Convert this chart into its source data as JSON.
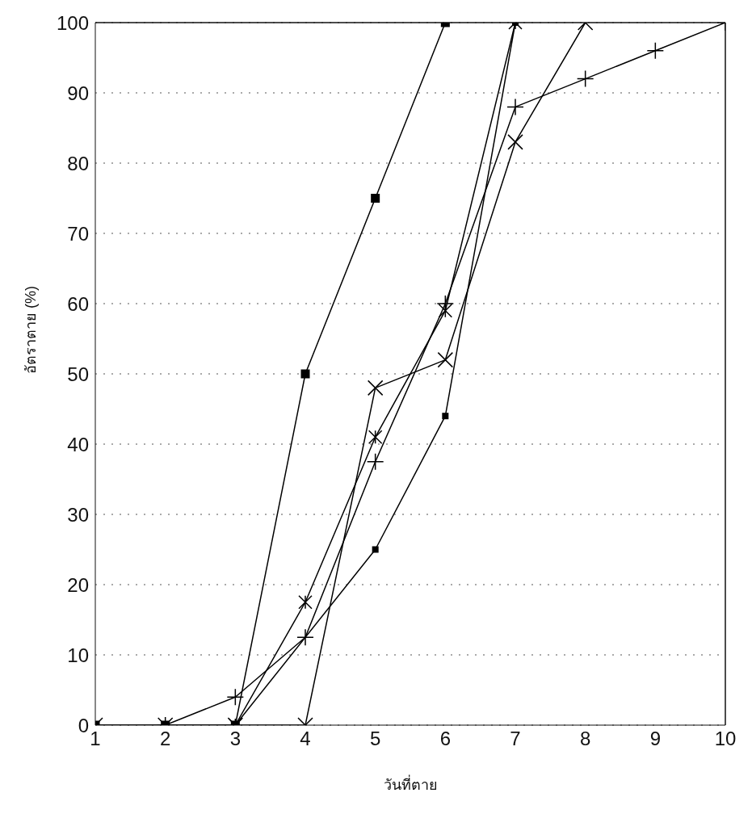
{
  "chart_data": {
    "type": "line",
    "xlabel": "วันที่ตาย",
    "ylabel": "อัตราตาย (%)",
    "xlim": [
      1,
      10
    ],
    "xticks": [
      1,
      2,
      3,
      4,
      5,
      6,
      7,
      8,
      9,
      10
    ],
    "ylim": [
      0,
      100
    ],
    "yticks": [
      0,
      10,
      20,
      30,
      40,
      50,
      60,
      70,
      80,
      90,
      100
    ],
    "grid": "y",
    "legend": false,
    "line_style": "solid",
    "series": [
      {
        "color": "#000000",
        "marker": "cross",
        "x": [
          2,
          3,
          4,
          5,
          6,
          7,
          8,
          9,
          10
        ],
        "values": [
          0,
          4,
          12.5,
          37.5,
          60,
          88,
          92,
          96,
          100
        ]
      },
      {
        "color": "#000000",
        "marker": "cross",
        "x": [
          3,
          4,
          5,
          6,
          7
        ],
        "values": [
          0,
          17.5,
          41,
          59,
          100
        ]
      },
      {
        "color": "#000000",
        "marker": "cross",
        "x": [
          1,
          2,
          3,
          4,
          5,
          6,
          7,
          8
        ],
        "values": [
          0,
          0,
          0,
          0,
          48,
          52,
          83,
          100
        ]
      },
      {
        "color": "#000000",
        "marker": "square",
        "x": [
          1,
          2,
          3,
          4,
          5,
          6
        ],
        "values": [
          0,
          0,
          0,
          50,
          75,
          100
        ]
      },
      {
        "color": "#000000",
        "marker": "square",
        "x": [
          3,
          5,
          6,
          7
        ],
        "values": [
          0,
          25,
          44,
          100
        ]
      }
    ]
  }
}
